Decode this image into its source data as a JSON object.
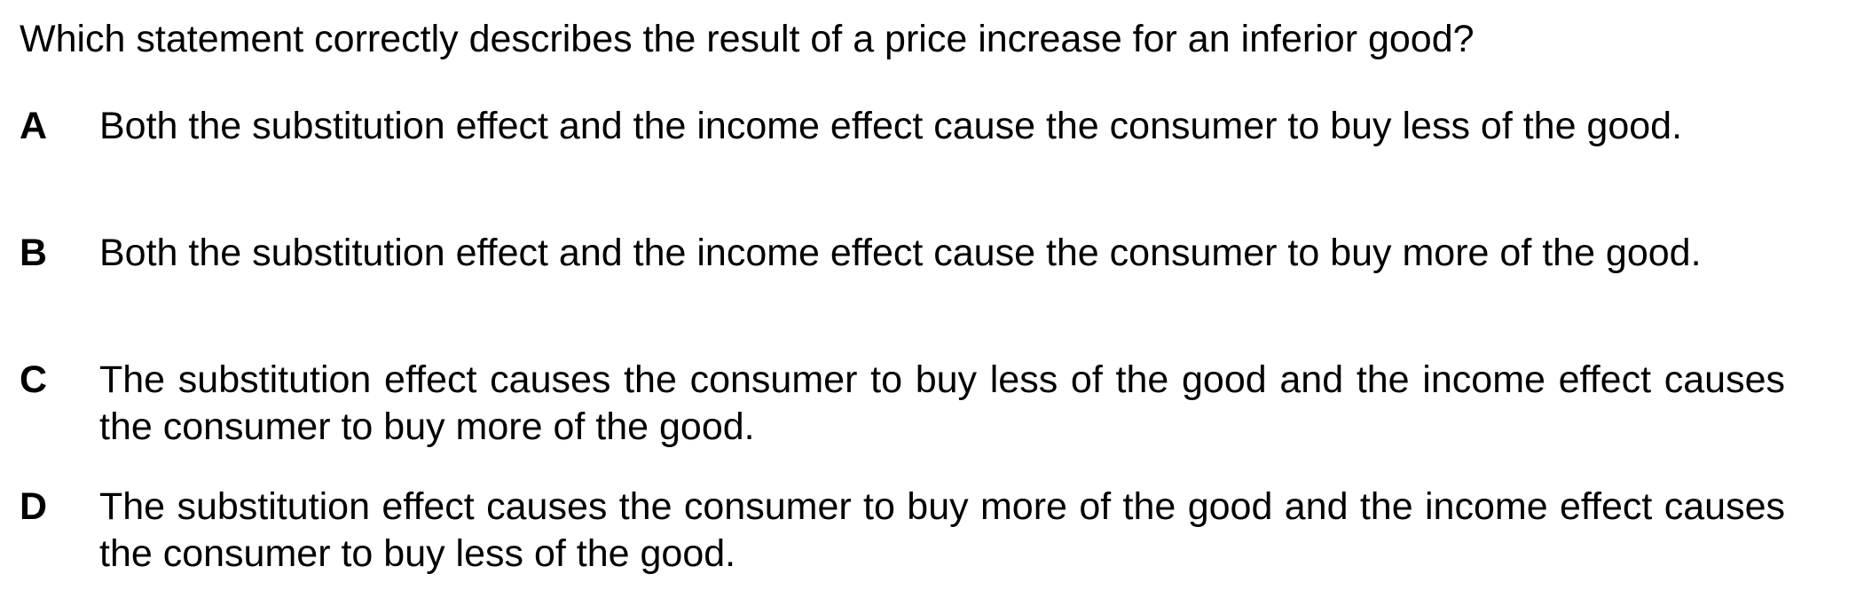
{
  "question": {
    "text": "Which statement correctly describes the result of a price increase for an inferior good?"
  },
  "options": [
    {
      "letter": "A",
      "text": "Both the substitution effect and the income effect cause the consumer to buy less of the good."
    },
    {
      "letter": "B",
      "text": "Both the substitution effect and the income effect cause the consumer to buy more of the good."
    },
    {
      "letter": "C",
      "text": "The substitution effect causes the consumer to buy less of the good and the income effect causes the consumer to buy more of the good."
    },
    {
      "letter": "D",
      "text": "The substitution effect causes the consumer to buy more of the good and the income effect causes the consumer to buy less of the good."
    }
  ]
}
